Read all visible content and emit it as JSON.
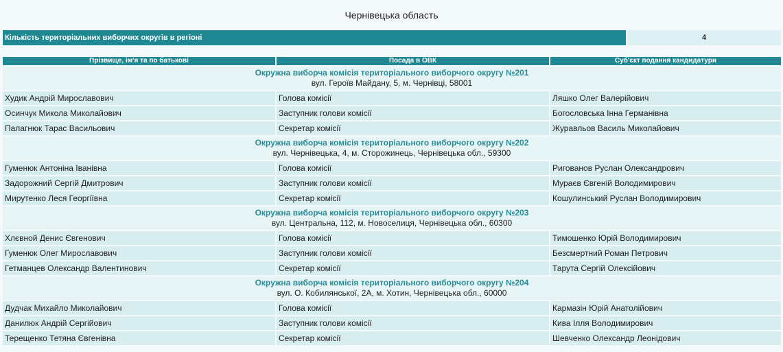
{
  "title": "Чернівецька область",
  "summary": {
    "label": "Кількість територіальних виборчих округів в регіоні",
    "value": 4
  },
  "table": {
    "columns": [
      "Прізвище, ім'я та по батькові",
      "Посада в ОВК",
      "Суб'єкт подання кандидатури"
    ],
    "groups": [
      {
        "title": "Окружна виборча комісія територіального виборчого округу №201",
        "address": "вул. Героїв Майдану, 5, м. Чернівці, 58001",
        "rows": [
          [
            "Худик Андрій Мирославович",
            "Голова комісії",
            "Ляшко Олег Валерійович"
          ],
          [
            "Осинчук Микола Миколайович",
            "Заступник голови комісії",
            "Богословська Інна Германівна"
          ],
          [
            "Палагнюк Тарас Васильович",
            "Секретар комісії",
            "Журавльов Василь Миколайович"
          ]
        ]
      },
      {
        "title": "Окружна виборча комісія територіального виборчого округу №202",
        "address": "вул. Чернівецька, 4, м. Сторожинець, Чернівецька обл., 59300",
        "rows": [
          [
            "Гуменюк Антоніна Іванівна",
            "Голова комісії",
            "Ригованов Руслан Олександрович"
          ],
          [
            "Задорожний Сергій Дмитрович",
            "Заступник голови комісії",
            "Мураєв Євгеній Володимирович"
          ],
          [
            "Мирутенко Леся Георгіївна",
            "Секретар комісії",
            "Кошулинський Руслан Володимирович"
          ]
        ]
      },
      {
        "title": "Окружна виборча комісія територіального виборчого округу №203",
        "address": "вул. Центральна, 112, м. Новоселиця, Чернівецька обл., 60300",
        "rows": [
          [
            "Хлєвной Денис Євгенович",
            "Голова комісії",
            "Тимошенко Юрій Володимирович"
          ],
          [
            "Гуменюк Олег Мирославович",
            "Заступник голови комісії",
            "Безсмертний Роман Петрович"
          ],
          [
            "Гетманцев Олександр Валентинович",
            "Секретар комісії",
            "Тарута Сергій Олексійович"
          ]
        ]
      },
      {
        "title": "Окружна виборча комісія територіального виборчого округу №204",
        "address": "вул. О. Кобилянської, 2А, м. Хотин, Чернівецька обл., 60000",
        "rows": [
          [
            "Дудчак Михайло Миколайович",
            "Голова комісії",
            "Кармазін Юрій Анатолійович"
          ],
          [
            "Данилюк Андрій Сергійович",
            "Заступник голови комісії",
            "Кива Ілля Володимирович"
          ],
          [
            "Терещенко Тетяна Євгенівна",
            "Секретар комісії",
            "Шевченко Олександр Леонідович"
          ]
        ]
      }
    ]
  }
}
